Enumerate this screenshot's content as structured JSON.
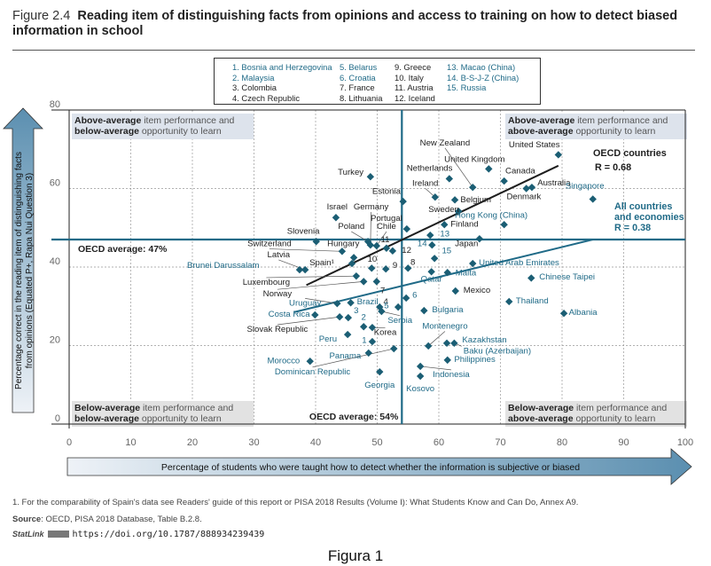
{
  "title": {
    "figure_number": "Figure 2.4",
    "text": "Reading item of distinguishing facts from opinions and access to training on how to detect biased information in school"
  },
  "legend_key": [
    [
      {
        "label": "1. Bosnia and Herzegovina",
        "teal": true
      },
      {
        "label": "2. Malaysia",
        "teal": true
      },
      {
        "label": "3. Colombia",
        "teal": false
      },
      {
        "label": "4. Czech Republic",
        "teal": false
      }
    ],
    [
      {
        "label": "5. Belarus",
        "teal": true
      },
      {
        "label": "6. Croatia",
        "teal": true
      },
      {
        "label": "7. France",
        "teal": false
      },
      {
        "label": "8. Lithuania",
        "teal": false
      }
    ],
    [
      {
        "label": "9. Greece",
        "teal": false
      },
      {
        "label": "10. Italy",
        "teal": false
      },
      {
        "label": "11. Austria",
        "teal": false
      },
      {
        "label": "12. Iceland",
        "teal": false
      }
    ],
    [
      {
        "label": "13. Macao (China)",
        "teal": true
      },
      {
        "label": "14. B-S-J-Z (China)",
        "teal": true
      },
      {
        "label": "15. Russia",
        "teal": true
      }
    ]
  ],
  "quadrants": {
    "top_left": {
      "bold1": "Above-average",
      "rest1": " item performance and",
      "bold2": "below-average",
      "rest2": " opportunity to learn"
    },
    "top_right": {
      "bold1": "Above-average",
      "rest1": " item performance and",
      "bold2": "above-average",
      "rest2": " opportunity to learn"
    },
    "bottom_left": {
      "bold1": "Below-average",
      "rest1": " item performance and",
      "bold2": "below-average",
      "rest2": " opportunity to learn"
    },
    "bottom_right": {
      "bold1": "Below-average",
      "rest1": " item performance and",
      "bold2": "above-average",
      "rest2": " opportunity to learn"
    }
  },
  "colors": {
    "oecd": "#1e1e1e",
    "partner": "#1f6a87",
    "marker": "#1b5e74",
    "avg_line": "#1f6a87",
    "quadrant_top": "#dde3ec",
    "quadrant_bottom": "#e2e2e2"
  },
  "chart_data": {
    "type": "scatter",
    "xlabel": "Percentage of students who were taught how to detect whether the information is subjective or biased",
    "ylabel": "Percentage correct in the reading item of distinguishing facts from opinions (Equated P+, Rapa Nui Question 3)",
    "xlim": [
      0,
      100
    ],
    "ylim": [
      0,
      80
    ],
    "xticks": [
      0,
      10,
      20,
      30,
      40,
      50,
      60,
      70,
      80,
      90,
      100
    ],
    "yticks": [
      0,
      20,
      40,
      60,
      80
    ],
    "grid": true,
    "oecd_average_x": {
      "value": 54,
      "label": "OECD average: 54%"
    },
    "oecd_average_y": {
      "value": 47,
      "label": "OECD average: 47%"
    },
    "trendlines": [
      {
        "name": "OECD countries",
        "r_label": "R = 0.68",
        "from": [
          38.5,
          35.4
        ],
        "to": [
          79.4,
          65.8
        ],
        "color": "#1e1e1e"
      },
      {
        "name": "All countries and economies",
        "r_label": "R = 0.38",
        "from": [
          36.5,
          28.5
        ],
        "to": [
          85.0,
          47.0
        ],
        "color": "#1f6a87"
      }
    ],
    "points": [
      {
        "label": "United States",
        "x": 79.4,
        "y": 68.6,
        "oecd": true,
        "lx": 75.5,
        "ly": 70.5
      },
      {
        "label": "United Kingdom",
        "x": 68.1,
        "y": 65.0,
        "oecd": true,
        "lx": 65.8,
        "ly": 66.8
      },
      {
        "label": "New Zealand",
        "x": 65.5,
        "y": 60.3,
        "oecd": true,
        "lx": 61.0,
        "ly": 71.0,
        "leader": true
      },
      {
        "label": "Netherlands",
        "x": 61.7,
        "y": 62.5,
        "oecd": true,
        "lx": 58.5,
        "ly": 64.5
      },
      {
        "label": "Canada",
        "x": 70.6,
        "y": 61.9,
        "oecd": true,
        "lx": 70.8,
        "ly": 63.8,
        "anchor": "start"
      },
      {
        "label": "Australia",
        "x": 75.1,
        "y": 60.3,
        "oecd": true,
        "lx": 76.0,
        "ly": 60.8,
        "anchor": "start"
      },
      {
        "label": "Denmark",
        "x": 74.2,
        "y": 60.0,
        "oecd": true,
        "lx": 73.8,
        "ly": 57.3
      },
      {
        "label": "Singapore",
        "x": 85.0,
        "y": 57.3,
        "oecd": false,
        "lx": 83.7,
        "ly": 60.0
      },
      {
        "label": "Ireland",
        "x": 59.4,
        "y": 57.8,
        "oecd": true,
        "lx": 57.8,
        "ly": 60.7,
        "leader": true
      },
      {
        "label": "Belgium",
        "x": 62.6,
        "y": 57.1,
        "oecd": true,
        "lx": 63.5,
        "ly": 56.5,
        "anchor": "start"
      },
      {
        "label": "Sweden",
        "x": 63.2,
        "y": 54.2,
        "oecd": true,
        "lx": 60.8,
        "ly": 54.0
      },
      {
        "label": "Finland",
        "x": 60.9,
        "y": 50.8,
        "oecd": true,
        "lx": 61.9,
        "ly": 50.3,
        "anchor": "start"
      },
      {
        "label": "Hong Kong (China)",
        "x": 70.6,
        "y": 50.8,
        "oecd": false,
        "lx": 68.5,
        "ly": 52.5
      },
      {
        "label": "Estonia",
        "x": 54.2,
        "y": 56.7,
        "oecd": true,
        "lx": 51.5,
        "ly": 58.6
      },
      {
        "label": "Turkey",
        "x": 48.9,
        "y": 63.0,
        "oecd": true,
        "lx": 45.7,
        "ly": 63.5
      },
      {
        "label": "Israel",
        "x": 43.3,
        "y": 52.6,
        "oecd": true,
        "lx": 43.5,
        "ly": 54.7
      },
      {
        "label": "Germany",
        "x": 48.9,
        "y": 45.6,
        "oecd": true,
        "lx": 49.0,
        "ly": 54.7,
        "leader": true
      },
      {
        "label": "Portugal",
        "x": 54.8,
        "y": 49.7,
        "oecd": true,
        "lx": 51.5,
        "ly": 51.7
      },
      {
        "label": "Poland",
        "x": 48.5,
        "y": 46.5,
        "oecd": true,
        "lx": 45.8,
        "ly": 49.7,
        "leader": true
      },
      {
        "label": "Chile",
        "x": 49.9,
        "y": 45.4,
        "oecd": true,
        "lx": 51.5,
        "ly": 49.7,
        "leader": true
      },
      {
        "label": "13",
        "x": 58.6,
        "y": 48.1,
        "oecd": false,
        "lx": 60.2,
        "ly": 47.8,
        "anchor": "start"
      },
      {
        "label": "Japan",
        "x": 66.6,
        "y": 47.2,
        "oecd": true,
        "lx": 64.5,
        "ly": 45.3
      },
      {
        "label": "14",
        "x": 58.9,
        "y": 45.6,
        "oecd": false,
        "lx": 57.3,
        "ly": 45.3
      },
      {
        "label": "Slovenia",
        "x": 40.1,
        "y": 46.5,
        "oecd": true,
        "lx": 38.0,
        "ly": 48.5
      },
      {
        "label": "11",
        "x": 51.5,
        "y": 44.8,
        "oecd": true,
        "lx": 51.3,
        "ly": 46.3
      },
      {
        "label": "12",
        "x": 52.5,
        "y": 44.1,
        "oecd": true,
        "lx": 54.0,
        "ly": 43.6,
        "anchor": "start"
      },
      {
        "label": "Hungary",
        "x": 46.2,
        "y": 42.4,
        "oecd": true,
        "lx": 44.5,
        "ly": 45.3
      },
      {
        "label": "Switzerland",
        "x": 44.3,
        "y": 44.0,
        "oecd": true,
        "lx": 32.5,
        "ly": 45.3,
        "leader": true
      },
      {
        "label": "15",
        "x": 59.3,
        "y": 42.2,
        "oecd": false,
        "lx": 60.5,
        "ly": 43.5,
        "anchor": "start"
      },
      {
        "label": "United Arab Emirates",
        "x": 65.5,
        "y": 40.9,
        "oecd": false,
        "lx": 66.5,
        "ly": 40.4,
        "anchor": "start"
      },
      {
        "label": "Latvia",
        "x": 38.3,
        "y": 39.3,
        "oecd": true,
        "lx": 34.0,
        "ly": 42.5,
        "leader": true
      },
      {
        "label": "Spain¹",
        "x": 45.9,
        "y": 40.9,
        "oecd": true,
        "lx": 41.0,
        "ly": 40.5
      },
      {
        "label": "10",
        "x": 49.1,
        "y": 39.7,
        "oecd": true,
        "lx": 49.2,
        "ly": 41.3
      },
      {
        "label": "9",
        "x": 51.4,
        "y": 39.5,
        "oecd": true,
        "lx": 52.5,
        "ly": 39.8,
        "anchor": "start"
      },
      {
        "label": "8",
        "x": 55.0,
        "y": 39.7,
        "oecd": true,
        "lx": 55.4,
        "ly": 40.6,
        "anchor": "start"
      },
      {
        "label": "Brunei Darussalam",
        "x": 37.4,
        "y": 39.3,
        "oecd": false,
        "lx": 25.0,
        "ly": 39.8
      },
      {
        "label": "Qatar",
        "x": 58.8,
        "y": 38.8,
        "oecd": false,
        "lx": 58.8,
        "ly": 36.3
      },
      {
        "label": "Malta",
        "x": 61.4,
        "y": 38.6,
        "oecd": false,
        "lx": 62.7,
        "ly": 37.8,
        "anchor": "start"
      },
      {
        "label": "Chinese Taipei",
        "x": 75.0,
        "y": 37.2,
        "oecd": false,
        "lx": 76.3,
        "ly": 36.8,
        "anchor": "start"
      },
      {
        "label": "Luxembourg",
        "x": 46.6,
        "y": 37.7,
        "oecd": true,
        "lx": 32.0,
        "ly": 35.5,
        "leader": true
      },
      {
        "label": "Norway",
        "x": 47.8,
        "y": 36.3,
        "oecd": true,
        "lx": 33.8,
        "ly": 32.5,
        "leader": true
      },
      {
        "label": "7",
        "x": 49.9,
        "y": 36.3,
        "oecd": true,
        "lx": 50.5,
        "ly": 33.3,
        "anchor": "start"
      },
      {
        "label": "Mexico",
        "x": 62.7,
        "y": 33.9,
        "oecd": true,
        "lx": 64.0,
        "ly": 33.4,
        "anchor": "start"
      },
      {
        "label": "6",
        "x": 54.7,
        "y": 32.1,
        "oecd": false,
        "lx": 55.7,
        "ly": 32.2,
        "anchor": "start"
      },
      {
        "label": "Uruguay",
        "x": 43.5,
        "y": 30.7,
        "oecd": false,
        "lx": 38.3,
        "ly": 30.2,
        "leader": true
      },
      {
        "label": "Brazil",
        "x": 45.7,
        "y": 30.9,
        "oecd": false,
        "lx": 46.7,
        "ly": 30.5,
        "anchor": "start"
      },
      {
        "label": "Thailand",
        "x": 71.4,
        "y": 31.2,
        "oecd": false,
        "lx": 72.5,
        "ly": 30.7,
        "anchor": "start"
      },
      {
        "label": "4",
        "x": 50.4,
        "y": 29.8,
        "oecd": true,
        "lx": 51.0,
        "ly": 30.5,
        "anchor": "start"
      },
      {
        "label": "Serbia",
        "x": 50.7,
        "y": 28.7,
        "oecd": false,
        "lx": 53.7,
        "ly": 25.8,
        "leader": true
      },
      {
        "label": "Bulgaria",
        "x": 57.6,
        "y": 28.9,
        "oecd": false,
        "lx": 58.9,
        "ly": 28.5,
        "anchor": "start"
      },
      {
        "label": "5",
        "x": 53.4,
        "y": 29.8,
        "oecd": false,
        "lx": 51.5,
        "ly": 29.5
      },
      {
        "label": "Albania",
        "x": 80.3,
        "y": 28.2,
        "oecd": false,
        "lx": 81.1,
        "ly": 27.8,
        "anchor": "start"
      },
      {
        "label": "Costa Rica",
        "x": 39.9,
        "y": 27.8,
        "oecd": false,
        "lx": 35.7,
        "ly": 27.3
      },
      {
        "label": "3",
        "x": 45.3,
        "y": 27.1,
        "oecd": false,
        "lx": 46.2,
        "ly": 28.3,
        "anchor": "start"
      },
      {
        "label": "Slovak Republic",
        "x": 43.9,
        "y": 27.3,
        "oecd": true,
        "lx": 33.8,
        "ly": 23.5,
        "leader": true
      },
      {
        "label": "2",
        "x": 47.8,
        "y": 24.8,
        "oecd": false,
        "lx": 47.8,
        "ly": 26.6
      },
      {
        "label": "Korea",
        "x": 49.2,
        "y": 24.6,
        "oecd": true,
        "lx": 51.3,
        "ly": 22.7,
        "leader": true
      },
      {
        "label": "Peru",
        "x": 45.2,
        "y": 22.8,
        "oecd": false,
        "lx": 42.0,
        "ly": 21.0
      },
      {
        "label": "1",
        "x": 49.2,
        "y": 21.0,
        "oecd": false,
        "lx": 47.9,
        "ly": 20.7
      },
      {
        "label": "Montenegro",
        "x": 58.3,
        "y": 19.9,
        "oecd": false,
        "lx": 61.0,
        "ly": 24.3,
        "leader": true
      },
      {
        "label": "Kazakhstan",
        "x": 61.3,
        "y": 20.6,
        "oecd": false,
        "lx": 63.8,
        "ly": 20.8,
        "anchor": "start"
      },
      {
        "label": "Baku (Azerbaijan)",
        "x": 62.5,
        "y": 20.6,
        "oecd": false,
        "lx": 64.0,
        "ly": 18.0,
        "anchor": "start",
        "leader": true
      },
      {
        "label": "Panama",
        "x": 48.6,
        "y": 18.1,
        "oecd": false,
        "lx": 44.8,
        "ly": 16.7
      },
      {
        "label": "Dominican Republic",
        "x": 52.7,
        "y": 19.2,
        "oecd": false,
        "lx": 39.5,
        "ly": 12.7,
        "leader": true
      },
      {
        "label": "Morocco",
        "x": 39.1,
        "y": 16.0,
        "oecd": false,
        "lx": 34.8,
        "ly": 15.5
      },
      {
        "label": "Philippines",
        "x": 61.4,
        "y": 16.3,
        "oecd": false,
        "lx": 62.5,
        "ly": 15.8,
        "anchor": "start"
      },
      {
        "label": "Indonesia",
        "x": 57.0,
        "y": 14.7,
        "oecd": false,
        "lx": 62.0,
        "ly": 12.0,
        "leader": true
      },
      {
        "label": "Georgia",
        "x": 50.4,
        "y": 13.3,
        "oecd": false,
        "lx": 50.4,
        "ly": 9.3
      },
      {
        "label": "Kosovo",
        "x": 57.0,
        "y": 12.2,
        "oecd": false,
        "lx": 57.0,
        "ly": 8.4
      }
    ]
  },
  "annotations": {
    "oecd_countries": "OECD countries",
    "oecd_r": "R = 0.68",
    "all_line1": "All countries",
    "all_line2": "and economies",
    "all_r": "R = 0.38"
  },
  "footer": {
    "note": "1. For the comparability of Spain's data see Readers' guide of this report or PISA 2018 Results (Volume I): What Students Know and Can Do, Annex A9.",
    "source_label": "Source",
    "source_text": ": OECD, PISA 2018 Database, Table B.2.8.",
    "statlink_label": "StatLink",
    "statlink_url": "https://doi.org/10.1787/888934239439"
  },
  "caption": "Figura 1"
}
